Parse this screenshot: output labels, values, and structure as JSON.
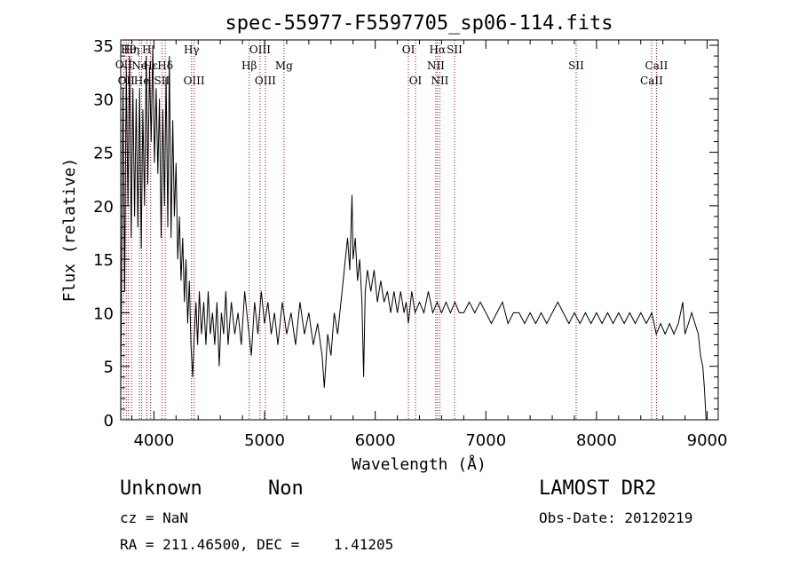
{
  "chart_data": {
    "type": "line",
    "title": "spec-55977-F5597705_sp06-114.fits",
    "xlabel": "Wavelength (Å)",
    "ylabel": "Flux (relative)",
    "xlim": [
      3700,
      9100
    ],
    "ylim": [
      0,
      35.5
    ],
    "x_ticks": [
      4000,
      5000,
      6000,
      7000,
      8000,
      9000
    ],
    "y_ticks": [
      0,
      5,
      10,
      15,
      20,
      25,
      30,
      35
    ],
    "grid": false,
    "line_color": "#000000",
    "marker_color": "#a0002a",
    "series": [
      {
        "points": [
          [
            3700,
            2
          ],
          [
            3720,
            31
          ],
          [
            3735,
            12
          ],
          [
            3750,
            33
          ],
          [
            3765,
            20
          ],
          [
            3780,
            34
          ],
          [
            3795,
            17
          ],
          [
            3810,
            31
          ],
          [
            3825,
            19
          ],
          [
            3840,
            30
          ],
          [
            3855,
            18
          ],
          [
            3870,
            31
          ],
          [
            3885,
            16
          ],
          [
            3900,
            29
          ],
          [
            3915,
            20
          ],
          [
            3930,
            34
          ],
          [
            3945,
            22
          ],
          [
            3960,
            33
          ],
          [
            3975,
            26
          ],
          [
            3990,
            35
          ],
          [
            4005,
            24
          ],
          [
            4020,
            31
          ],
          [
            4035,
            23
          ],
          [
            4050,
            30
          ],
          [
            4065,
            17
          ],
          [
            4080,
            29
          ],
          [
            4095,
            20
          ],
          [
            4110,
            32
          ],
          [
            4125,
            18
          ],
          [
            4140,
            34
          ],
          [
            4155,
            17
          ],
          [
            4170,
            28
          ],
          [
            4185,
            19
          ],
          [
            4200,
            24
          ],
          [
            4215,
            15
          ],
          [
            4230,
            19
          ],
          [
            4245,
            13
          ],
          [
            4260,
            17
          ],
          [
            4275,
            11
          ],
          [
            4290,
            15
          ],
          [
            4305,
            9
          ],
          [
            4320,
            13
          ],
          [
            4335,
            7
          ],
          [
            4350,
            4
          ],
          [
            4365,
            8
          ],
          [
            4380,
            11
          ],
          [
            4395,
            7
          ],
          [
            4410,
            12
          ],
          [
            4430,
            8
          ],
          [
            4450,
            11
          ],
          [
            4470,
            7
          ],
          [
            4490,
            12
          ],
          [
            4510,
            8
          ],
          [
            4530,
            10
          ],
          [
            4550,
            7
          ],
          [
            4570,
            11
          ],
          [
            4590,
            5
          ],
          [
            4610,
            10
          ],
          [
            4630,
            8
          ],
          [
            4650,
            12
          ],
          [
            4670,
            7
          ],
          [
            4700,
            11
          ],
          [
            4730,
            8
          ],
          [
            4760,
            10
          ],
          [
            4790,
            7
          ],
          [
            4820,
            12
          ],
          [
            4850,
            9
          ],
          [
            4880,
            6
          ],
          [
            4910,
            11
          ],
          [
            4940,
            8
          ],
          [
            4970,
            12
          ],
          [
            5000,
            9
          ],
          [
            5030,
            11
          ],
          [
            5060,
            8
          ],
          [
            5090,
            10
          ],
          [
            5120,
            7
          ],
          [
            5160,
            11
          ],
          [
            5200,
            8
          ],
          [
            5240,
            10
          ],
          [
            5280,
            7
          ],
          [
            5320,
            11
          ],
          [
            5360,
            8
          ],
          [
            5400,
            10
          ],
          [
            5440,
            7
          ],
          [
            5480,
            9
          ],
          [
            5520,
            6
          ],
          [
            5540,
            3
          ],
          [
            5570,
            8
          ],
          [
            5600,
            6
          ],
          [
            5630,
            10
          ],
          [
            5660,
            8
          ],
          [
            5700,
            12
          ],
          [
            5730,
            15
          ],
          [
            5750,
            17
          ],
          [
            5770,
            14
          ],
          [
            5790,
            21
          ],
          [
            5800,
            15
          ],
          [
            5820,
            17
          ],
          [
            5840,
            13
          ],
          [
            5860,
            15
          ],
          [
            5880,
            11
          ],
          [
            5895,
            4
          ],
          [
            5910,
            12
          ],
          [
            5930,
            14
          ],
          [
            5960,
            12
          ],
          [
            5990,
            14
          ],
          [
            6020,
            11
          ],
          [
            6050,
            13
          ],
          [
            6080,
            11
          ],
          [
            6110,
            12
          ],
          [
            6140,
            10
          ],
          [
            6170,
            12
          ],
          [
            6200,
            10
          ],
          [
            6230,
            12
          ],
          [
            6260,
            10
          ],
          [
            6280,
            11
          ],
          [
            6300,
            9
          ],
          [
            6330,
            12
          ],
          [
            6360,
            10
          ],
          [
            6400,
            11
          ],
          [
            6440,
            10
          ],
          [
            6480,
            12
          ],
          [
            6520,
            10
          ],
          [
            6560,
            11
          ],
          [
            6600,
            10
          ],
          [
            6640,
            11
          ],
          [
            6680,
            10
          ],
          [
            6720,
            11
          ],
          [
            6760,
            10
          ],
          [
            6800,
            10
          ],
          [
            6850,
            11
          ],
          [
            6900,
            10
          ],
          [
            6950,
            11
          ],
          [
            7000,
            10
          ],
          [
            7050,
            9
          ],
          [
            7100,
            10
          ],
          [
            7150,
            11
          ],
          [
            7200,
            9
          ],
          [
            7250,
            10
          ],
          [
            7300,
            10
          ],
          [
            7350,
            9
          ],
          [
            7400,
            10
          ],
          [
            7450,
            9
          ],
          [
            7500,
            10
          ],
          [
            7550,
            9
          ],
          [
            7600,
            10
          ],
          [
            7650,
            11
          ],
          [
            7700,
            10
          ],
          [
            7750,
            9
          ],
          [
            7800,
            10
          ],
          [
            7850,
            9
          ],
          [
            7900,
            10
          ],
          [
            7950,
            9
          ],
          [
            8000,
            10
          ],
          [
            8050,
            9
          ],
          [
            8100,
            10
          ],
          [
            8150,
            9
          ],
          [
            8200,
            10
          ],
          [
            8250,
            9
          ],
          [
            8300,
            10
          ],
          [
            8350,
            9
          ],
          [
            8400,
            10
          ],
          [
            8450,
            9
          ],
          [
            8500,
            10
          ],
          [
            8540,
            8
          ],
          [
            8580,
            9
          ],
          [
            8620,
            8
          ],
          [
            8660,
            9
          ],
          [
            8700,
            8
          ],
          [
            8740,
            9
          ],
          [
            8780,
            11
          ],
          [
            8800,
            8
          ],
          [
            8830,
            9
          ],
          [
            8860,
            10
          ],
          [
            8890,
            9
          ],
          [
            8920,
            8
          ],
          [
            8940,
            6
          ],
          [
            8960,
            5
          ],
          [
            8975,
            3
          ],
          [
            8985,
            1
          ],
          [
            8990,
            0
          ]
        ]
      }
    ],
    "line_markers": [
      {
        "wavelength": 3727,
        "label": "OII",
        "row": 2
      },
      {
        "wavelength": 3750,
        "label": "OII",
        "row": 4
      },
      {
        "wavelength": 3770,
        "label": "Hθ",
        "row": 1
      },
      {
        "wavelength": 3798,
        "label": "Hη",
        "row": 1
      },
      {
        "wavelength": 3869,
        "label": "Ne",
        "row": 3
      },
      {
        "wavelength": 3889,
        "label": "He",
        "row": 4
      },
      {
        "wavelength": 3935,
        "label": "H",
        "row": 1
      },
      {
        "wavelength": 3970,
        "label": "Hε",
        "row": 3
      },
      {
        "wavelength": 4072,
        "label": "SII",
        "row": 4
      },
      {
        "wavelength": 4102,
        "label": "Hδ",
        "row": 3
      },
      {
        "wavelength": 4340,
        "label": "Hγ",
        "row": 1
      },
      {
        "wavelength": 4363,
        "label": "OIII",
        "row": 4
      },
      {
        "wavelength": 4861,
        "label": "Hβ",
        "row": 3
      },
      {
        "wavelength": 4959,
        "label": "OIII",
        "row": 1
      },
      {
        "wavelength": 5007,
        "label": "OIII",
        "row": 4
      },
      {
        "wavelength": 5175,
        "label": "Mg",
        "row": 3
      },
      {
        "wavelength": 6300,
        "label": "OI",
        "row": 1
      },
      {
        "wavelength": 6364,
        "label": "OI",
        "row": 4
      },
      {
        "wavelength": 6548,
        "label": "NII",
        "row": 3
      },
      {
        "wavelength": 6563,
        "label": "Hα",
        "row": 1
      },
      {
        "wavelength": 6584,
        "label": "NII",
        "row": 4
      },
      {
        "wavelength": 6717,
        "label": "SII",
        "row": 1
      },
      {
        "wavelength": 7816,
        "label": "SII",
        "row": 3
      },
      {
        "wavelength": 8498,
        "label": "CaII",
        "row": 4
      },
      {
        "wavelength": 8542,
        "label": "CaII",
        "row": 3
      }
    ]
  },
  "footer": {
    "classification": "Unknown",
    "subclass": "Non",
    "survey": "LAMOST DR2",
    "cz": "cz = NaN",
    "obs_date": "Obs-Date: 20120219",
    "coords": "RA = 211.46500, DEC =    1.41205"
  }
}
